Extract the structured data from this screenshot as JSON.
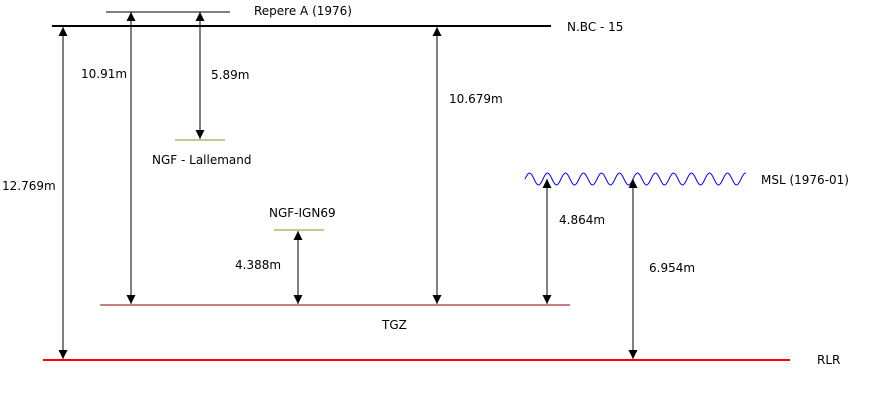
{
  "levels": {
    "repere_a": {
      "label": "Repere A (1976)"
    },
    "nbc15": {
      "label": "N.BC - 15"
    },
    "ngf_lallemand": {
      "label": "NGF - Lallemand",
      "color": "#6fa020"
    },
    "ngf_ign69": {
      "label": "NGF-IGN69",
      "color": "#6fa020"
    },
    "msl": {
      "label": "MSL (1976-01)",
      "color": "#0000ff"
    },
    "tgz": {
      "label": "TGZ",
      "color": "#8b0000"
    },
    "rlr": {
      "label": "RLR",
      "color": "#ff0000"
    }
  },
  "measurements": {
    "nbc_to_rlr": "12.769m",
    "nbc_to_tgz_left": "10.91m",
    "repere_to_lallemand": "5.89m",
    "ign69_to_tgz": "4.388m",
    "nbc_to_tgz_right": "10.679m",
    "msl_to_tgz": "4.864m",
    "msl_to_rlr": "6.954m"
  }
}
